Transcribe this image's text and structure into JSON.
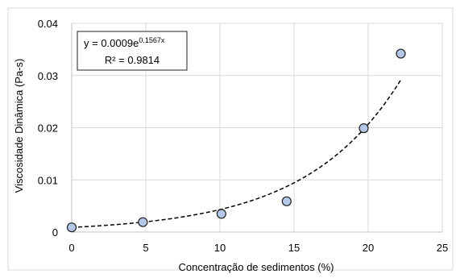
{
  "chart_data": {
    "type": "scatter",
    "xlabel": "Concentração de sedimentos (%)",
    "ylabel": "Viscosidade Dinâmica (Pa-s)",
    "xlim": [
      0,
      25
    ],
    "ylim": [
      0,
      0.04
    ],
    "x_ticks": [
      "0",
      "5",
      "10",
      "15",
      "20",
      "25"
    ],
    "y_ticks": [
      "0",
      "0.01",
      "0.02",
      "0.03",
      "0.04"
    ],
    "grid": true,
    "points": [
      {
        "x": 0,
        "y": 0.0009
      },
      {
        "x": 4.8,
        "y": 0.0019
      },
      {
        "x": 10.1,
        "y": 0.0035
      },
      {
        "x": 14.5,
        "y": 0.0059
      },
      {
        "x": 19.7,
        "y": 0.0199
      },
      {
        "x": 22.2,
        "y": 0.0342
      }
    ],
    "trendline": {
      "type": "exponential",
      "a": 0.0009,
      "b": 0.1567,
      "x_range": [
        0,
        22.2
      ],
      "style": "dashed"
    },
    "equation_box": {
      "line1_prefix": "y = 0.0009e",
      "line1_superscript": "0.1567x",
      "line2": "R² = 0.9814",
      "placement": "top-left"
    },
    "colors": {
      "marker_fill": "#b4c7e7",
      "marker_stroke": "#1f1f1f",
      "trendline": "#000000",
      "grid": "#d9d9d9",
      "border": "#d9d9d9"
    }
  }
}
